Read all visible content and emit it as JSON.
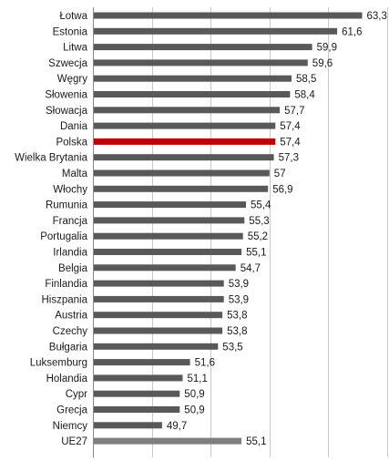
{
  "chart_data": {
    "type": "bar",
    "orientation": "horizontal",
    "categories": [
      "Łotwa",
      "Estonia",
      "Litwa",
      "Szwecja",
      "Węgry",
      "Słowenia",
      "Słowacja",
      "Dania",
      "Polska",
      "Wielka Brytania",
      "Malta",
      "Włochy",
      "Rumunia",
      "Francja",
      "Portugalia",
      "Irlandia",
      "Belgia",
      "Finlandia",
      "Hiszpania",
      "Austria",
      "Czechy",
      "Bułgaria",
      "Luksemburg",
      "Holandia",
      "Cypr",
      "Grecja",
      "Niemcy",
      "UE27"
    ],
    "values": [
      63.3,
      61.6,
      59.9,
      59.6,
      58.5,
      58.4,
      57.7,
      57.4,
      57.4,
      57.3,
      57,
      56.9,
      55.4,
      55.3,
      55.2,
      55.1,
      54.7,
      53.9,
      53.9,
      53.8,
      53.8,
      53.5,
      51.6,
      51.1,
      50.9,
      50.9,
      49.7,
      55.1
    ],
    "value_labels": [
      "63,3",
      "61,6",
      "59,9",
      "59,6",
      "58,5",
      "58,4",
      "57,7",
      "57,4",
      "57,4",
      "57,3",
      "57",
      "56,9",
      "55,4",
      "55,3",
      "55,2",
      "55,1",
      "54,7",
      "53,9",
      "53,9",
      "53,8",
      "53,8",
      "53,5",
      "51,6",
      "51,1",
      "50,9",
      "50,9",
      "49,7",
      "55,1"
    ],
    "xlim": [
      45,
      65
    ],
    "grid": true,
    "legend": "none",
    "colors": {
      "default": "#595959",
      "highlight": "#c00000",
      "average": "#7f7f7f",
      "grid": "#c8c8c8"
    },
    "highlight_category": "Polska",
    "average_category": "UE27"
  }
}
